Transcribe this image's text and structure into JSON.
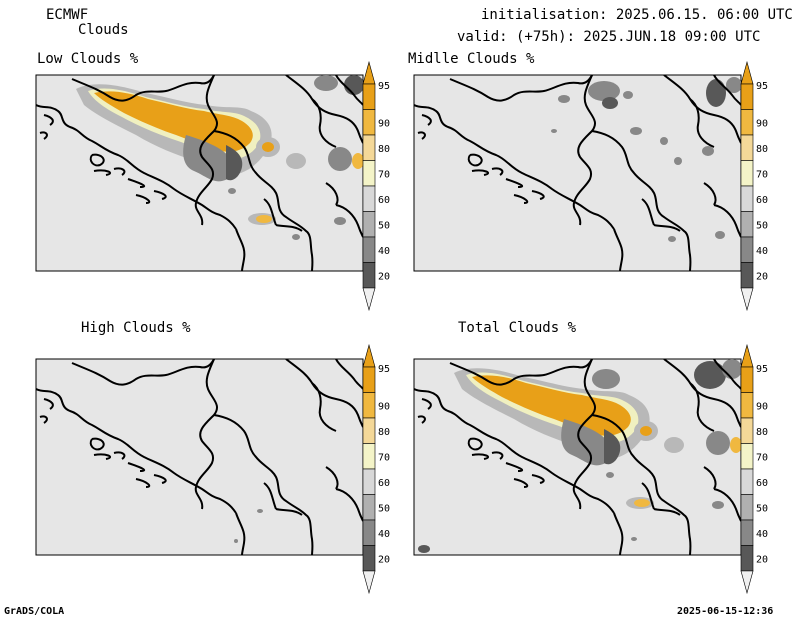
{
  "header": {
    "model": "ECMWF",
    "product": "Clouds",
    "initialisation": "initialisation: 2025.06.15. 06:00 UTC",
    "valid": "valid: (+75h): 2025.JUN.18 09:00 UTC"
  },
  "panels": [
    {
      "key": "low",
      "title": "Low Clouds %"
    },
    {
      "key": "middle",
      "title": "Midlle Clouds %"
    },
    {
      "key": "high",
      "title": "High Clouds %"
    },
    {
      "key": "total",
      "title": "Total Clouds %"
    }
  ],
  "colorbar": {
    "levels": [
      "95",
      "90",
      "80",
      "70",
      "60",
      "50",
      "40",
      "20"
    ],
    "colors": {
      "c95": "#e8a018",
      "c90": "#f0b840",
      "c80": "#f4d898",
      "c70": "#f4f4c8",
      "c60": "#d8d8d8",
      "c50": "#b0b0b0",
      "c40": "#888888",
      "c20": "#585858",
      "below": "#f0f0f0",
      "background": "#e6e6e6"
    }
  },
  "footer": {
    "left": "GrADS/COLA",
    "right": "2025-06-15-12:36"
  }
}
